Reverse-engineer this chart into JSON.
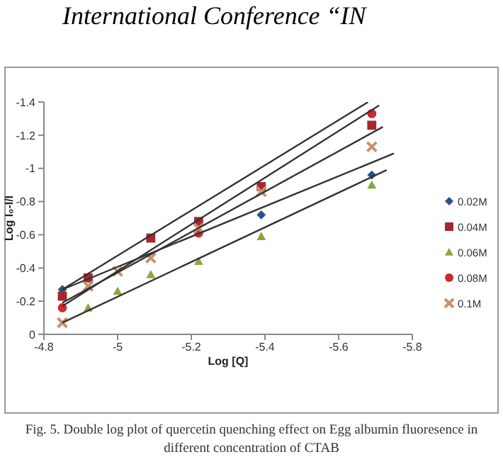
{
  "chart_data": {
    "type": "scatter",
    "xlabel": "Log [Q]",
    "ylabel": "Log I₀-I/I",
    "annotations": [
      "International Conference “IN",
      "Fig. 5. Double log plot of quercetin quenching effect on Egg albumin fluoresence in different concentration of CTAB"
    ],
    "x": [
      -4.85,
      -4.92,
      -5.0,
      -5.09,
      -5.22,
      -5.39,
      -5.69
    ],
    "series": [
      {
        "name": "0.02M",
        "color": "#2b4f8f",
        "marker": "diamond",
        "values": [
          -0.27,
          null,
          null,
          null,
          null,
          -0.72,
          -0.96
        ]
      },
      {
        "name": "0.04M",
        "color": "#a3292e",
        "marker": "square",
        "values": [
          -0.23,
          -0.34,
          null,
          -0.58,
          -0.68,
          -0.89,
          -1.26
        ]
      },
      {
        "name": "0.06M",
        "color": "#8aa63f",
        "marker": "triangle",
        "values": [
          null,
          -0.16,
          -0.26,
          -0.36,
          -0.44,
          -0.59,
          -0.9
        ]
      },
      {
        "name": "0.08M",
        "color": "#cc2a2f",
        "marker": "circle",
        "values": [
          -0.16,
          null,
          null,
          null,
          -0.61,
          null,
          -1.33
        ]
      },
      {
        "name": "0.1M",
        "color": "#c8916e",
        "marker": "cross",
        "values": [
          -0.07,
          -0.29,
          -0.38,
          -0.46,
          -0.64,
          -0.86,
          -1.13
        ]
      },
      {
        "type": "line",
        "color": "#333333",
        "x": [
          -4.85,
          -5.68
        ],
        "values": [
          -0.27,
          -1.4
        ]
      },
      {
        "type": "line",
        "color": "#333333",
        "x": [
          -4.85,
          -5.71
        ],
        "values": [
          -0.17,
          -1.38
        ]
      },
      {
        "type": "line",
        "color": "#333333",
        "x": [
          -4.85,
          -5.72
        ],
        "values": [
          -0.19,
          -1.25
        ]
      },
      {
        "type": "line",
        "color": "#333333",
        "x": [
          -4.85,
          -5.75
        ],
        "values": [
          -0.27,
          -1.09
        ]
      },
      {
        "type": "line",
        "color": "#333333",
        "x": [
          -4.85,
          -5.73
        ],
        "values": [
          -0.07,
          -0.99
        ]
      }
    ],
    "xlim": [
      -4.8,
      -5.8
    ],
    "xticks": [
      -4.8,
      -5,
      -5.2,
      -5.4,
      -5.6,
      -5.8
    ],
    "ylim": [
      0,
      -1.4
    ],
    "yticks": [
      -1.4,
      -1.2,
      -1,
      -0.8,
      -0.6,
      -0.4,
      -0.2,
      0
    ],
    "legend": "right"
  }
}
